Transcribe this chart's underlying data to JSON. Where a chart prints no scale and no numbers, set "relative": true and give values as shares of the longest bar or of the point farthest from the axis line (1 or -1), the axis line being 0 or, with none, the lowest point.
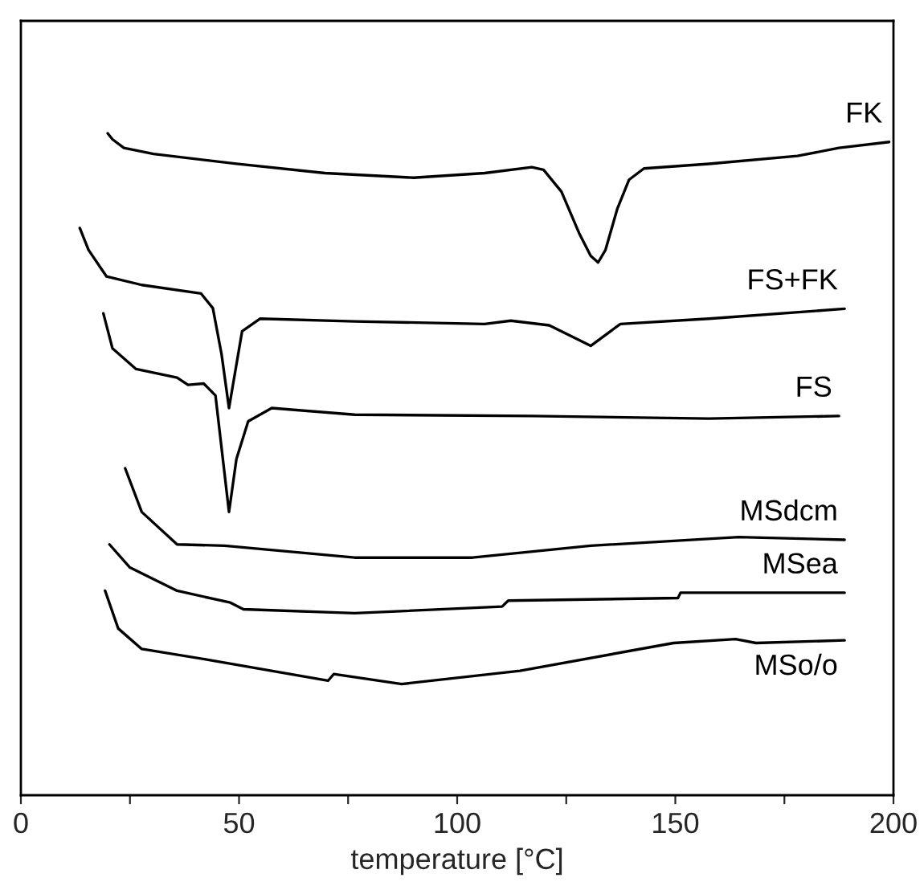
{
  "chart_data": {
    "type": "line",
    "relative": true,
    "xlabel": "temperature [°C]",
    "xlim": [
      0,
      200
    ],
    "xticks": [
      0,
      {
        "value": 25,
        "label": null
      },
      50,
      {
        "value": 75,
        "label": null
      },
      100,
      {
        "value": 125,
        "label": null
      },
      150,
      {
        "value": 175,
        "label": null
      },
      200
    ],
    "grid": false,
    "legend": false,
    "marker": "none",
    "line_style": "solid",
    "series": [
      {
        "name": "FK",
        "color": "#000000",
        "x": [
          19.9,
          21.0,
          23.6,
          30.4,
          49.4,
          69.7,
          90.0,
          106.3,
          117.1,
          119.8,
          123.9,
          127.9,
          130.6,
          132.3,
          134.0,
          136.7,
          139.4,
          142.8,
          157.7,
          178.0,
          187.5,
          199.0
        ],
        "values": [
          1.0,
          0.991,
          0.978,
          0.969,
          0.954,
          0.94,
          0.933,
          0.94,
          0.949,
          0.945,
          0.912,
          0.85,
          0.815,
          0.805,
          0.824,
          0.886,
          0.93,
          0.947,
          0.954,
          0.966,
          0.978,
          0.987
        ]
      },
      {
        "name": "FS+FK",
        "color": "#000000",
        "x": [
          13.5,
          15.5,
          19.6,
          27.7,
          41.3,
          44.0,
          46.0,
          47.7,
          50.7,
          54.8,
          76.5,
          106.3,
          112.3,
          121.1,
          130.6,
          137.4,
          157.7,
          188.8
        ],
        "values": [
          0.857,
          0.824,
          0.784,
          0.771,
          0.758,
          0.736,
          0.666,
          0.585,
          0.701,
          0.72,
          0.716,
          0.712,
          0.717,
          0.71,
          0.679,
          0.712,
          0.72,
          0.735
        ]
      },
      {
        "name": "FS",
        "color": "#000000",
        "x": [
          18.9,
          21.0,
          26.4,
          35.8,
          38.3,
          41.9,
          44.6,
          47.7,
          49.4,
          52.1,
          57.5,
          76.5,
          117.1,
          157.7,
          187.5
        ],
        "values": [
          0.728,
          0.675,
          0.644,
          0.631,
          0.62,
          0.622,
          0.604,
          0.428,
          0.508,
          0.565,
          0.585,
          0.575,
          0.573,
          0.569,
          0.573
        ]
      },
      {
        "name": "MSdcm",
        "color": "#000000",
        "x": [
          23.9,
          27.7,
          35.8,
          46.7,
          76.5,
          103.5,
          130.6,
          164.5,
          188.8
        ],
        "values": [
          0.494,
          0.428,
          0.379,
          0.377,
          0.359,
          0.359,
          0.377,
          0.39,
          0.386
        ]
      },
      {
        "name": "MSea",
        "color": "#000000",
        "x": [
          20.3,
          25.0,
          35.8,
          48.0,
          51.0,
          76.5,
          110.3,
          111.7,
          150.6,
          151.2,
          188.8
        ],
        "values": [
          0.379,
          0.344,
          0.309,
          0.291,
          0.281,
          0.275,
          0.285,
          0.294,
          0.298,
          0.306,
          0.306
        ]
      },
      {
        "name": "MSo/o",
        "color": "#000000",
        "x": [
          19.3,
          22.3,
          27.7,
          42.6,
          70.4,
          71.7,
          87.3,
          114.4,
          149.6,
          163.8,
          168.5,
          188.8
        ],
        "values": [
          0.309,
          0.252,
          0.221,
          0.205,
          0.173,
          0.183,
          0.168,
          0.188,
          0.23,
          0.236,
          0.23,
          0.234
        ]
      }
    ]
  }
}
